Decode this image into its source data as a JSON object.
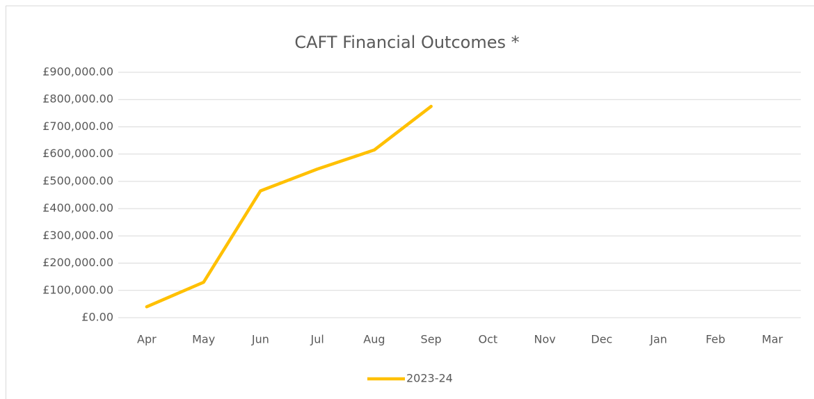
{
  "chart_data": {
    "type": "line",
    "title": "CAFT Financial Outcomes *",
    "categories": [
      "Apr",
      "May",
      "Jun",
      "Jul",
      "Aug",
      "Sep",
      "Oct",
      "Nov",
      "Dec",
      "Jan",
      "Feb",
      "Mar"
    ],
    "series": [
      {
        "name": "2023-24",
        "color": "#ffc000",
        "values": [
          40000,
          130000,
          465000,
          545000,
          615000,
          775000,
          null,
          null,
          null,
          null,
          null,
          null
        ]
      }
    ],
    "ylim": [
      0,
      900000
    ],
    "yticks": [
      {
        "value": 0,
        "label": "£0.00"
      },
      {
        "value": 100000,
        "label": "£100,000.00"
      },
      {
        "value": 200000,
        "label": "£200,000.00"
      },
      {
        "value": 300000,
        "label": "£300,000.00"
      },
      {
        "value": 400000,
        "label": "£400,000.00"
      },
      {
        "value": 500000,
        "label": "£500,000.00"
      },
      {
        "value": 600000,
        "label": "£600,000.00"
      },
      {
        "value": 700000,
        "label": "£700,000.00"
      },
      {
        "value": 800000,
        "label": "£800,000.00"
      },
      {
        "value": 900000,
        "label": "£900,000.00"
      }
    ],
    "grid": true,
    "legend": "bottom"
  }
}
